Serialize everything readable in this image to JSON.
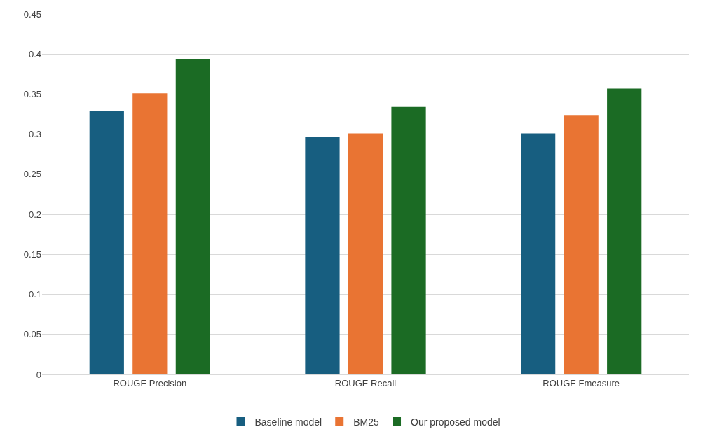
{
  "chart_data": {
    "type": "bar",
    "categories": [
      "ROUGE Precision",
      "ROUGE Recall",
      "ROUGE Fmeasure"
    ],
    "series": [
      {
        "name": "Baseline model",
        "color": "#175e80",
        "values": [
          0.329,
          0.297,
          0.301
        ]
      },
      {
        "name": "BM25",
        "color": "#e97433",
        "values": [
          0.351,
          0.301,
          0.324
        ]
      },
      {
        "name": "Our proposed model",
        "color": "#1b6b24",
        "values": [
          0.394,
          0.334,
          0.357
        ]
      }
    ],
    "ylim": [
      0,
      0.45
    ],
    "yticks": [
      0,
      0.05,
      0.1,
      0.15,
      0.2,
      0.25,
      0.3,
      0.35,
      0.4,
      0.45
    ],
    "grid": "y",
    "legend": "bottom"
  }
}
